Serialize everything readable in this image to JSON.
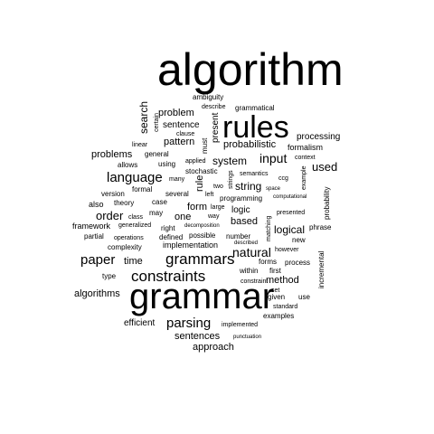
{
  "words": {
    "algorithm": "algorithm",
    "rules": "rules",
    "grammar": "grammar",
    "constraints": "constraints",
    "grammars": "grammars",
    "language": "language",
    "paper": "paper",
    "parsing": "parsing",
    "input": "input",
    "natural": "natural",
    "order": "order",
    "sentences": "sentences",
    "approach": "approach",
    "used": "used",
    "logical": "logical",
    "problems": "problems",
    "probabilistic": "probabilistic",
    "system": "system",
    "string": "string",
    "search": "search",
    "problem": "problem",
    "sentence": "sentence",
    "pattern": "pattern",
    "present": "present",
    "must": "must",
    "processing": "processing",
    "formalism": "formalism",
    "time": "time",
    "based": "based",
    "one": "one",
    "form": "form",
    "logic": "logic",
    "method": "method",
    "algorithms": "algorithms",
    "efficient": "efficient",
    "ambiguity": "ambiguity",
    "describe": "describe",
    "grammatical": "grammatical",
    "certain": "certain",
    "clause": "clause",
    "linear": "linear",
    "general": "general",
    "allows": "allows",
    "using": "using",
    "applied": "applied",
    "stochastic": "stochastic",
    "many": "many",
    "rule": "rule",
    "strings": "strings",
    "semantics": "semantics",
    "ccg": "ccg",
    "context": "context",
    "example": "example",
    "space": "space",
    "computational": "computational",
    "probability": "probability",
    "version": "version",
    "formal": "formal",
    "several": "several",
    "two": "two",
    "left": "left",
    "programming": "programming",
    "also": "also",
    "theory": "theory",
    "case": "case",
    "large": "large",
    "way": "way",
    "class": "class",
    "may": "may",
    "presented": "presented",
    "framework": "framework",
    "generalized": "generalized",
    "right": "right",
    "decomposition": "decomposition",
    "possible": "possible",
    "number": "number",
    "matching": "matching",
    "phrase": "phrase",
    "partial": "partial",
    "operations": "operations",
    "defined": "defined",
    "described": "described",
    "however": "however",
    "new": "new",
    "complexity": "complexity",
    "implementation": "implementation",
    "forms": "forms",
    "process": "process",
    "type": "type",
    "within": "within",
    "first": "first",
    "incremental": "incremental",
    "constraint": "constraint",
    "set": "set",
    "given": "given",
    "use": "use",
    "standard": "standard",
    "examples": "examples",
    "implemented": "implemented",
    "punctuation": "punctuation"
  }
}
